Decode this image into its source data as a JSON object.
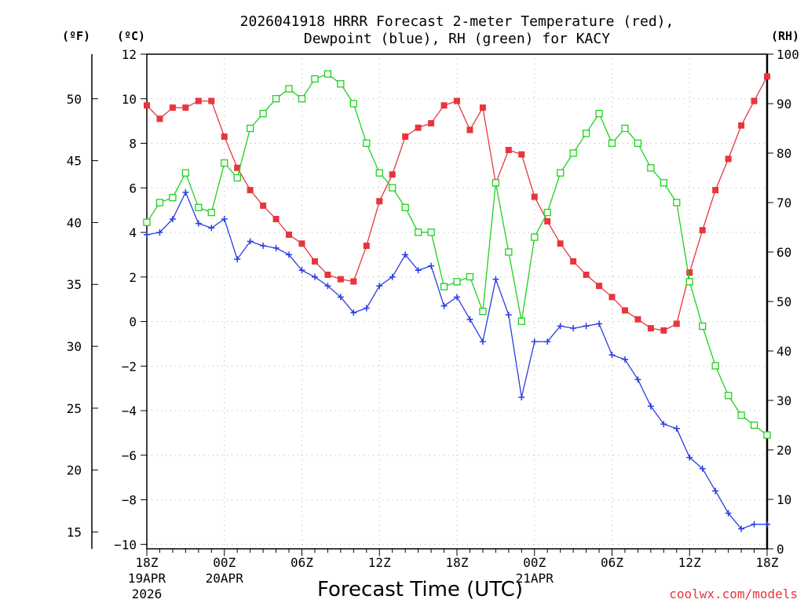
{
  "chart_data": {
    "type": "line",
    "title_line1": "2026041918 HRRR Forecast 2-meter Temperature (red),",
    "title_line2": "Dewpoint (blue), RH (green) for KACY",
    "xlabel": "Forecast Time (UTC)",
    "credit": "coolwx.com/models",
    "unit_labels": {
      "fahrenheit": "(ºF)",
      "celsius": "(ºC)",
      "rh": "(RH)"
    },
    "x": [
      "19APR 18Z",
      "19APR 19Z",
      "19APR 20Z",
      "19APR 21Z",
      "19APR 22Z",
      "19APR 23Z",
      "20APR 00Z",
      "20APR 01Z",
      "20APR 02Z",
      "20APR 03Z",
      "20APR 04Z",
      "20APR 05Z",
      "20APR 06Z",
      "20APR 07Z",
      "20APR 08Z",
      "20APR 09Z",
      "20APR 10Z",
      "20APR 11Z",
      "20APR 12Z",
      "20APR 13Z",
      "20APR 14Z",
      "20APR 15Z",
      "20APR 16Z",
      "20APR 17Z",
      "20APR 18Z",
      "20APR 19Z",
      "20APR 20Z",
      "20APR 21Z",
      "20APR 22Z",
      "20APR 23Z",
      "21APR 00Z",
      "21APR 01Z",
      "21APR 02Z",
      "21APR 03Z",
      "21APR 04Z",
      "21APR 05Z",
      "21APR 06Z",
      "21APR 07Z",
      "21APR 08Z",
      "21APR 09Z",
      "21APR 10Z",
      "21APR 11Z",
      "21APR 12Z",
      "21APR 13Z",
      "21APR 14Z",
      "21APR 15Z",
      "21APR 16Z",
      "21APR 17Z",
      "21APR 18Z"
    ],
    "x_ticks": [
      {
        "index": 0,
        "label": "18Z",
        "sub1": "19APR",
        "sub2": "2026"
      },
      {
        "index": 6,
        "label": "00Z",
        "sub1": "20APR",
        "sub2": ""
      },
      {
        "index": 12,
        "label": "06Z",
        "sub1": "",
        "sub2": ""
      },
      {
        "index": 18,
        "label": "12Z",
        "sub1": "",
        "sub2": ""
      },
      {
        "index": 24,
        "label": "18Z",
        "sub1": "",
        "sub2": ""
      },
      {
        "index": 30,
        "label": "00Z",
        "sub1": "21APR",
        "sub2": ""
      },
      {
        "index": 36,
        "label": "06Z",
        "sub1": "",
        "sub2": ""
      },
      {
        "index": 42,
        "label": "12Z",
        "sub1": "",
        "sub2": ""
      },
      {
        "index": 48,
        "label": "18Z",
        "sub1": "",
        "sub2": ""
      }
    ],
    "y_left_celsius": {
      "label": "°C",
      "ylim": [
        -10.2,
        12
      ],
      "ticks": [
        -10,
        -8,
        -6,
        -4,
        -2,
        0,
        2,
        4,
        6,
        8,
        10,
        12
      ]
    },
    "y_left_fahrenheit": {
      "label": "°F",
      "ticks": [
        15,
        20,
        25,
        30,
        35,
        40,
        45,
        50
      ]
    },
    "y_right_rh": {
      "label": "RH",
      "ylim": [
        0,
        100
      ],
      "ticks": [
        0,
        10,
        20,
        30,
        40,
        50,
        60,
        70,
        80,
        90,
        100
      ]
    },
    "grid": true,
    "series": [
      {
        "name": "Temperature",
        "axis": "celsius",
        "color": "#e8353c",
        "marker": "filled-square",
        "values": [
          9.7,
          9.1,
          9.6,
          9.6,
          9.9,
          9.9,
          8.3,
          6.9,
          5.9,
          5.2,
          4.6,
          3.9,
          3.5,
          2.7,
          2.1,
          1.9,
          1.8,
          3.4,
          5.4,
          6.6,
          8.3,
          8.7,
          8.9,
          9.7,
          9.9,
          8.6,
          9.6,
          6.2,
          7.7,
          7.5,
          5.6,
          4.5,
          3.5,
          2.7,
          2.1,
          1.6,
          1.1,
          0.5,
          0.1,
          -0.3,
          -0.4,
          -0.1,
          2.2,
          4.1,
          5.9,
          7.3,
          8.8,
          9.9,
          11.0
        ]
      },
      {
        "name": "Dewpoint",
        "axis": "celsius",
        "color": "#2a3de0",
        "marker": "plus",
        "values": [
          3.9,
          4.0,
          4.6,
          5.8,
          4.4,
          4.2,
          4.6,
          2.8,
          3.6,
          3.4,
          3.3,
          3.0,
          2.3,
          2.0,
          1.6,
          1.1,
          0.4,
          0.6,
          1.6,
          2.0,
          3.0,
          2.3,
          2.5,
          0.7,
          1.1,
          0.1,
          -0.9,
          1.9,
          0.3,
          -3.4,
          -0.9,
          -0.9,
          -0.2,
          -0.3,
          -0.2,
          -0.1,
          -1.5,
          -1.7,
          -2.6,
          -3.8,
          -4.6,
          -4.8,
          -6.1,
          -6.6,
          -7.6,
          -8.6,
          -9.3,
          -9.1,
          -9.1
        ]
      },
      {
        "name": "RH",
        "axis": "rh",
        "color": "#1ed11e",
        "marker": "open-square",
        "values": [
          66,
          70,
          71,
          76,
          69,
          68,
          78,
          75,
          85,
          88,
          91,
          93,
          91,
          95,
          96,
          94,
          90,
          82,
          76,
          73,
          69,
          64,
          64,
          53,
          54,
          55,
          48,
          74,
          60,
          46,
          63,
          68,
          76,
          80,
          84,
          88,
          82,
          85,
          82,
          77,
          74,
          70,
          54,
          45,
          37,
          31,
          27,
          25,
          23
        ]
      }
    ]
  }
}
